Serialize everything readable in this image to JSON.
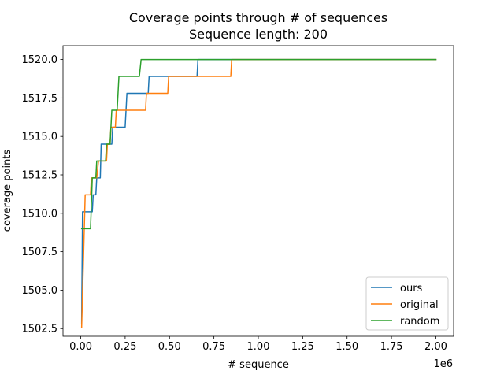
{
  "chart_data": {
    "type": "line",
    "title": "Coverage points through # of sequences",
    "subtitle": "Sequence length: 200",
    "xlabel": "# sequence",
    "ylabel": "coverage points",
    "x_offset_label": "1e6",
    "xlim": [
      -0.1,
      2.1
    ],
    "ylim": [
      1502.0,
      1520.9
    ],
    "xticks": [
      0.0,
      0.25,
      0.5,
      0.75,
      1.0,
      1.25,
      1.5,
      1.75,
      2.0
    ],
    "xtick_labels": [
      "0.00",
      "0.25",
      "0.50",
      "0.75",
      "1.00",
      "1.25",
      "1.50",
      "1.75",
      "2.00"
    ],
    "yticks": [
      1502.5,
      1505.0,
      1507.5,
      1510.0,
      1512.5,
      1515.0,
      1517.5,
      1520.0
    ],
    "ytick_labels": [
      "1502.5",
      "1505.0",
      "1507.5",
      "1510.0",
      "1512.5",
      "1515.0",
      "1517.5",
      "1520.0"
    ],
    "grid": false,
    "legend_position": "lower-right",
    "series": [
      {
        "name": "ours",
        "color": "#1f77b4",
        "points": [
          [
            0.005,
            1502.8
          ],
          [
            0.01,
            1510.1
          ],
          [
            0.065,
            1510.1
          ],
          [
            0.07,
            1511.2
          ],
          [
            0.085,
            1511.2
          ],
          [
            0.09,
            1512.3
          ],
          [
            0.11,
            1512.3
          ],
          [
            0.115,
            1514.5
          ],
          [
            0.175,
            1514.5
          ],
          [
            0.18,
            1515.6
          ],
          [
            0.25,
            1515.6
          ],
          [
            0.26,
            1517.8
          ],
          [
            0.38,
            1517.8
          ],
          [
            0.385,
            1518.9
          ],
          [
            0.655,
            1518.9
          ],
          [
            0.66,
            1520.0
          ],
          [
            2.0,
            1520.0
          ]
        ]
      },
      {
        "name": "original",
        "color": "#ff7f0e",
        "points": [
          [
            0.005,
            1502.6
          ],
          [
            0.025,
            1511.2
          ],
          [
            0.055,
            1511.2
          ],
          [
            0.06,
            1512.3
          ],
          [
            0.09,
            1512.3
          ],
          [
            0.1,
            1513.4
          ],
          [
            0.145,
            1513.4
          ],
          [
            0.15,
            1514.5
          ],
          [
            0.165,
            1514.5
          ],
          [
            0.17,
            1515.6
          ],
          [
            0.195,
            1515.6
          ],
          [
            0.2,
            1516.7
          ],
          [
            0.365,
            1516.7
          ],
          [
            0.37,
            1517.8
          ],
          [
            0.49,
            1517.8
          ],
          [
            0.495,
            1518.9
          ],
          [
            0.845,
            1518.9
          ],
          [
            0.85,
            1520.0
          ],
          [
            2.0,
            1520.0
          ]
        ]
      },
      {
        "name": "random",
        "color": "#2ca02c",
        "points": [
          [
            0.005,
            1509.0
          ],
          [
            0.055,
            1509.0
          ],
          [
            0.065,
            1512.3
          ],
          [
            0.085,
            1512.3
          ],
          [
            0.09,
            1513.4
          ],
          [
            0.14,
            1513.4
          ],
          [
            0.145,
            1514.5
          ],
          [
            0.165,
            1514.5
          ],
          [
            0.175,
            1516.7
          ],
          [
            0.205,
            1516.7
          ],
          [
            0.215,
            1518.9
          ],
          [
            0.33,
            1518.9
          ],
          [
            0.34,
            1520.0
          ],
          [
            2.0,
            1520.0
          ]
        ]
      }
    ]
  }
}
